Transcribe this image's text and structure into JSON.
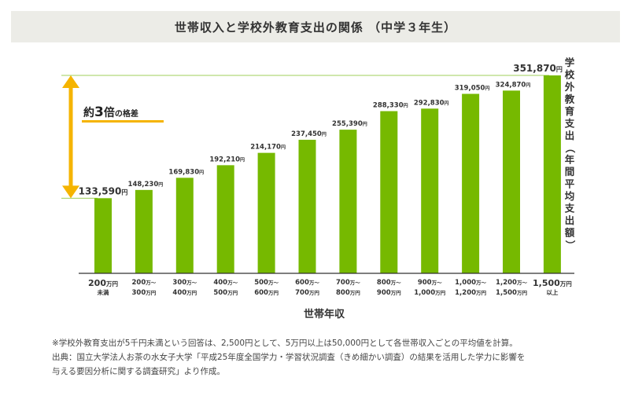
{
  "title": "世帯収入と学校外教育支出の関係 （中学３年生）",
  "chart_data": {
    "type": "bar",
    "categories": [
      {
        "main": "200",
        "unit": "万円",
        "sub": "未満"
      },
      {
        "line1": "200",
        "u1": "万〜",
        "line2": "300",
        "u2": "万円"
      },
      {
        "line1": "300",
        "u1": "万〜",
        "line2": "400",
        "u2": "万円"
      },
      {
        "line1": "400",
        "u1": "万〜",
        "line2": "500",
        "u2": "万円"
      },
      {
        "line1": "500",
        "u1": "万〜",
        "line2": "600",
        "u2": "万円"
      },
      {
        "line1": "600",
        "u1": "万〜",
        "line2": "700",
        "u2": "万円"
      },
      {
        "line1": "700",
        "u1": "万〜",
        "line2": "800",
        "u2": "万円"
      },
      {
        "line1": "800",
        "u1": "万〜",
        "line2": "900",
        "u2": "万円"
      },
      {
        "line1": "900",
        "u1": "万〜",
        "line2": "1,000",
        "u2": "万円"
      },
      {
        "line1": "1,000",
        "u1": "万〜",
        "line2": "1,200",
        "u2": "万円"
      },
      {
        "line1": "1,200",
        "u1": "万〜",
        "line2": "1,500",
        "u2": "万円"
      },
      {
        "main": "1,500",
        "unit": "万円",
        "sub": "以上"
      }
    ],
    "values": [
      133590,
      148230,
      169830,
      192210,
      214170,
      237450,
      255390,
      288330,
      292830,
      319050,
      324870,
      351870
    ],
    "value_labels": [
      "133,590",
      "148,230",
      "169,830",
      "192,210",
      "214,170",
      "237,450",
      "255,390",
      "288,330",
      "292,830",
      "319,050",
      "324,870",
      "351,870"
    ],
    "value_unit": "円",
    "xlabel": "世帯年収",
    "ylabel": "学校外教育支出（年間平均支出額）",
    "ylim": [
      0,
      351870
    ],
    "bar_color": "#76b900",
    "annotation": {
      "prefix": "約",
      "number": "3",
      "unit": "倍",
      "suffix": "の格差",
      "color": "#f5b400"
    }
  },
  "notes": [
    "※学校外教育支出が5千円未満という回答は、2,500円として、5万円以上は50,000円として各世帯収入ごとの平均値を計算。",
    "出典：国立大学法人お茶の水女子大学「平成25年度全国学力・学習状況調査（きめ細かい調査）の結果を活用した学力に影響を",
    "与える要因分析に関する調査研究」より作成。"
  ]
}
